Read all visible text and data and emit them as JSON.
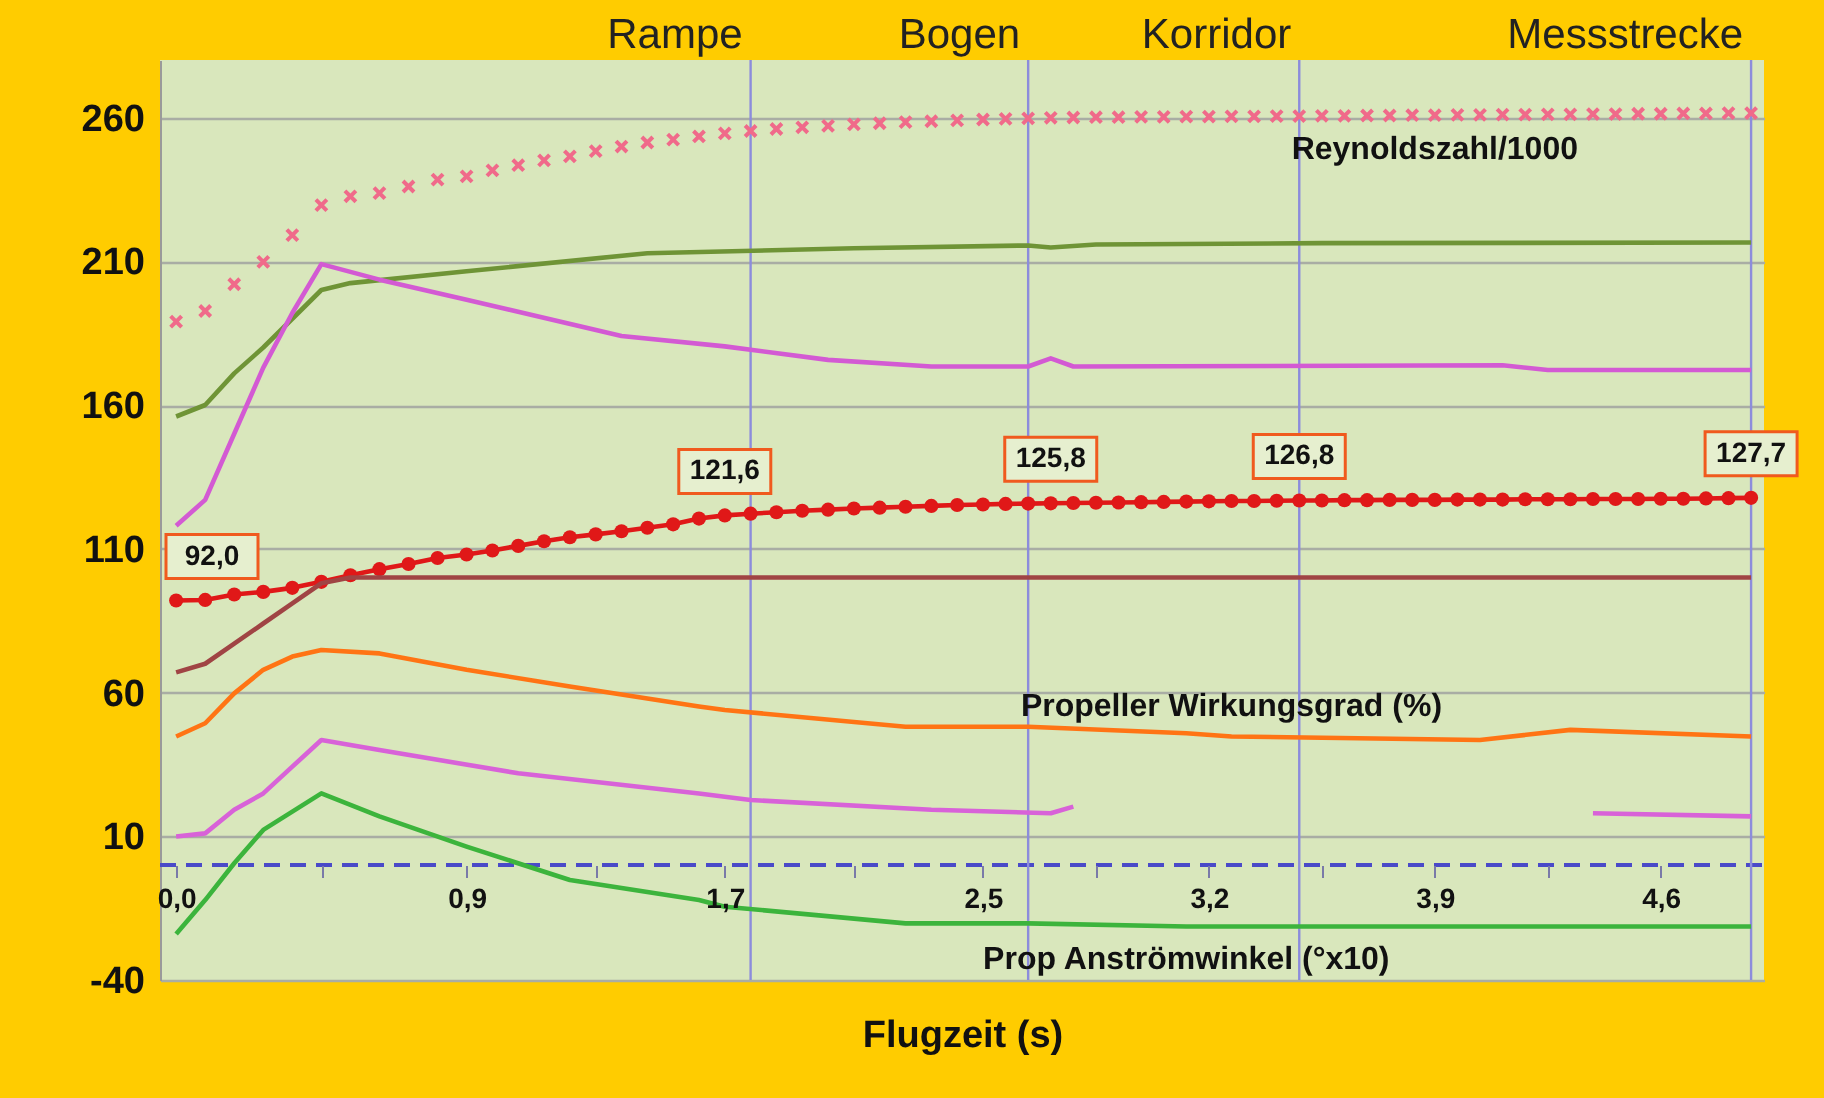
{
  "chart_data": {
    "type": "line",
    "xlabel": "Flugzeit (s)",
    "grid": "y",
    "x": [
      0,
      0.09,
      0.18,
      0.27,
      0.36,
      0.45,
      0.54,
      0.63,
      0.72,
      0.81,
      0.9,
      0.98,
      1.06,
      1.14,
      1.22,
      1.3,
      1.38,
      1.46,
      1.54,
      1.62,
      1.7,
      1.78,
      1.86,
      1.94,
      2.02,
      2.1,
      2.18,
      2.26,
      2.34,
      2.42,
      2.5,
      2.57,
      2.64,
      2.71,
      2.78,
      2.85,
      2.92,
      2.99,
      3.06,
      3.13,
      3.2,
      3.27,
      3.34,
      3.41,
      3.48,
      3.55,
      3.62,
      3.69,
      3.76,
      3.83,
      3.9,
      3.97,
      4.04,
      4.11,
      4.18,
      4.25,
      4.32,
      4.39,
      4.46,
      4.53,
      4.6,
      4.67,
      4.74,
      4.81,
      4.88
    ],
    "xlim": [
      -0.05,
      4.92
    ],
    "ylim": [
      -40,
      280
    ],
    "xticks": [
      {
        "value": 0,
        "label": "0,0"
      },
      {
        "value": 0.45,
        "label": null
      },
      {
        "value": 0.9,
        "label": "0,9"
      },
      {
        "value": 1.3,
        "label": null
      },
      {
        "value": 1.7,
        "label": "1,7"
      },
      {
        "value": 2.1,
        "label": null
      },
      {
        "value": 2.5,
        "label": "2,5"
      },
      {
        "value": 2.85,
        "label": null
      },
      {
        "value": 3.2,
        "label": "3,2"
      },
      {
        "value": 3.55,
        "label": null
      },
      {
        "value": 3.9,
        "label": "3,9"
      },
      {
        "value": 4.25,
        "label": null
      },
      {
        "value": 4.6,
        "label": "4,6"
      }
    ],
    "yticks": [
      -40,
      10,
      60,
      110,
      160,
      210,
      260
    ],
    "ref_lines": [
      {
        "axis": "y",
        "value": 0,
        "color": "#4a4ac8",
        "line_style": "dashed"
      },
      {
        "axis": "x",
        "value": 1.78,
        "label": "Rampe",
        "color": "#8c8cdc"
      },
      {
        "axis": "x",
        "value": 2.64,
        "label": "Bogen",
        "color": "#8c8cdc"
      },
      {
        "axis": "x",
        "value": 3.48,
        "label": "Korridor",
        "color": "#8c8cdc"
      },
      {
        "axis": "x",
        "value": 4.88,
        "label": "Messstrecke",
        "color": "#8c8cdc"
      }
    ],
    "series": [
      {
        "name": "Reynoldszahl/1000",
        "type": "scatter",
        "marker": "cross",
        "color": "#f06a8a",
        "values": [
          189.0,
          192.7,
          202.0,
          209.8,
          219.1,
          229.5,
          232.6,
          233.7,
          236.0,
          238.4,
          239.5,
          241.6,
          243.4,
          245.1,
          246.5,
          248.3,
          249.9,
          251.3,
          252.3,
          253.4,
          254.5,
          255.3,
          256.0,
          256.6,
          257.1,
          257.6,
          258.0,
          258.4,
          258.7,
          259.0,
          259.3,
          259.5,
          259.7,
          259.9,
          260.0,
          260.1,
          260.1,
          260.2,
          260.2,
          260.3,
          260.3,
          260.4,
          260.4,
          260.5,
          260.5,
          260.6,
          260.6,
          260.7,
          260.7,
          260.8,
          260.8,
          260.9,
          260.9,
          261.0,
          261.0,
          261.1,
          261.1,
          261.2,
          261.2,
          261.3,
          261.3,
          261.4,
          261.4,
          261.5,
          261.5
        ]
      },
      {
        "type": "line",
        "color": "#6f9436",
        "x": [
          0,
          0.09,
          0.18,
          0.27,
          0.36,
          0.45,
          0.54,
          0.9,
          1.46,
          2.1,
          2.64,
          2.71,
          2.85,
          3.55,
          4.88
        ],
        "values": [
          156,
          160,
          171,
          180,
          190,
          200,
          202.4,
          206.5,
          212.8,
          214.5,
          215.5,
          214.8,
          215.8,
          216.3,
          216.5
        ]
      },
      {
        "type": "line",
        "color": "#d35ad3",
        "x": [
          0,
          0.09,
          0.18,
          0.27,
          0.36,
          0.45,
          0.63,
          0.9,
          1.38,
          1.7,
          2.02,
          2.34,
          2.64,
          2.71,
          2.78,
          4.11,
          4.25,
          4.88
        ],
        "values": [
          118,
          127,
          150,
          173,
          192,
          209,
          203.6,
          196.6,
          184,
          180.4,
          175.7,
          173.4,
          173.4,
          176.2,
          173.4,
          173.8,
          172.2,
          172.2
        ]
      },
      {
        "type": "line",
        "marker": "circle",
        "color": "#e01818",
        "value_labels": [
          "92,0",
          null,
          null,
          null,
          null,
          null,
          null,
          null,
          null,
          null,
          null,
          null,
          null,
          null,
          null,
          null,
          null,
          null,
          null,
          null,
          "121,6",
          null,
          null,
          null,
          null,
          null,
          null,
          null,
          null,
          null,
          null,
          null,
          null,
          "125,8",
          null,
          null,
          null,
          null,
          null,
          null,
          null,
          null,
          null,
          null,
          "126,8",
          null,
          null,
          null,
          null,
          null,
          null,
          null,
          null,
          null,
          null,
          null,
          null,
          null,
          null,
          null,
          null,
          null,
          null,
          null,
          "127,7"
        ],
        "values": [
          92.0,
          92.2,
          94.1,
          95.0,
          96.4,
          98.5,
          100.8,
          102.9,
          104.7,
          106.8,
          108.0,
          109.4,
          111.0,
          112.6,
          114.0,
          115.0,
          116.1,
          117.3,
          118.5,
          120.5,
          121.6,
          122.2,
          122.7,
          123.2,
          123.6,
          124.0,
          124.3,
          124.6,
          124.9,
          125.2,
          125.4,
          125.6,
          125.7,
          125.8,
          125.9,
          126.0,
          126.1,
          126.2,
          126.3,
          126.4,
          126.5,
          126.6,
          126.6,
          126.7,
          126.8,
          126.8,
          126.9,
          126.9,
          127.0,
          127.0,
          127.0,
          127.1,
          127.1,
          127.1,
          127.2,
          127.2,
          127.2,
          127.3,
          127.3,
          127.3,
          127.4,
          127.4,
          127.5,
          127.6,
          127.7
        ]
      },
      {
        "type": "line",
        "color": "#a04444",
        "x": [
          0,
          0.09,
          0.18,
          0.27,
          0.36,
          0.45,
          0.54,
          4.88
        ],
        "values": [
          67,
          70,
          77,
          84,
          91,
          98,
          100,
          100
        ]
      },
      {
        "name": "Propeller Wirkungsgrad (%)",
        "type": "line",
        "color": "#ff7414",
        "x": [
          0,
          0.09,
          0.18,
          0.27,
          0.36,
          0.45,
          0.63,
          0.9,
          1.22,
          1.62,
          1.7,
          2.26,
          2.64,
          3.13,
          3.27,
          4.04,
          4.32,
          4.88
        ],
        "values": [
          44.7,
          49.3,
          59.7,
          67.9,
          72.5,
          74.8,
          73.6,
          67.9,
          62.1,
          55.1,
          53.9,
          48.1,
          48.1,
          45.8,
          44.7,
          43.5,
          47.0,
          44.7
        ]
      },
      {
        "type": "line",
        "color": "#d862d8",
        "x": [
          0,
          0.09,
          0.18,
          0.27,
          0.36,
          0.45,
          0.63,
          1.06,
          1.62,
          1.78,
          2.34,
          2.71,
          2.78,
          3.5,
          4.39,
          4.88
        ],
        "values": [
          9.9,
          11,
          19.2,
          24.9,
          34.2,
          43.5,
          40,
          31.9,
          24.9,
          22.6,
          19.2,
          18,
          20.3,
          null,
          18,
          16.9
        ]
      },
      {
        "name": "Prop Anströmwinkel (°x10)",
        "type": "line",
        "color": "#3cb43c",
        "x": [
          0,
          0.09,
          0.18,
          0.27,
          0.45,
          0.63,
          0.9,
          1.22,
          1.62,
          1.7,
          2.26,
          2.64,
          3.13,
          4.88
        ],
        "values": [
          -24,
          -12.2,
          0.6,
          12.2,
          24.9,
          16.9,
          6.4,
          -5.2,
          -12.2,
          -14.5,
          -20.3,
          -20.3,
          -21.4,
          -21.4
        ]
      }
    ]
  }
}
